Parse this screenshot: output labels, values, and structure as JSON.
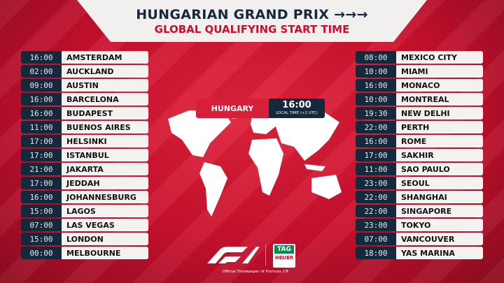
{
  "header": {
    "title": "HUNGARIAN GRAND PRIX →→→",
    "subtitle": "GLOBAL QUALIFYING START TIME"
  },
  "callout": {
    "country": "HUNGARY",
    "time": "16:00",
    "note": "LOCAL TIME (+2 UTC)"
  },
  "left": [
    {
      "time": "16:00",
      "city": "AMSTERDAM"
    },
    {
      "time": "02:00",
      "city": "AUCKLAND"
    },
    {
      "time": "09:00",
      "city": "AUSTIN"
    },
    {
      "time": "16:00",
      "city": "BARCELONA"
    },
    {
      "time": "16:00",
      "city": "BUDAPEST"
    },
    {
      "time": "11:00",
      "city": "BUENOS AIRES"
    },
    {
      "time": "17:00",
      "city": "HELSINKI"
    },
    {
      "time": "17:00",
      "city": "ISTANBUL"
    },
    {
      "time": "21:00",
      "city": "JAKARTA"
    },
    {
      "time": "17:00",
      "city": "JEDDAH"
    },
    {
      "time": "16:00",
      "city": "JOHANNESBURG"
    },
    {
      "time": "15:00",
      "city": "LAGOS"
    },
    {
      "time": "07:00",
      "city": "LAS VEGAS"
    },
    {
      "time": "15:00",
      "city": "LONDON"
    },
    {
      "time": "00:00",
      "city": "MELBOURNE"
    }
  ],
  "right": [
    {
      "time": "08:00",
      "city": "MEXICO CITY"
    },
    {
      "time": "10:00",
      "city": "MIAMI"
    },
    {
      "time": "16:00",
      "city": "MONACO"
    },
    {
      "time": "10:00",
      "city": "MONTREAL"
    },
    {
      "time": "19:30",
      "city": "NEW DELHI"
    },
    {
      "time": "22:00",
      "city": "PERTH"
    },
    {
      "time": "16:00",
      "city": "ROME"
    },
    {
      "time": "17:00",
      "city": "SAKHIR"
    },
    {
      "time": "11:00",
      "city": "SAO PAULO"
    },
    {
      "time": "23:00",
      "city": "SEOUL"
    },
    {
      "time": "22:00",
      "city": "SHANGHAI"
    },
    {
      "time": "22:00",
      "city": "SINGAPORE"
    },
    {
      "time": "23:00",
      "city": "TOKYO"
    },
    {
      "time": "07:00",
      "city": "VANCOUVER"
    },
    {
      "time": "18:00",
      "city": "YAS MARINA"
    }
  ],
  "footer": {
    "logo": "F1",
    "sponsor_top": "TAG",
    "sponsor_bottom": "HEUER",
    "tagline": "Official Timekeeper of Formula 1®"
  },
  "colors": {
    "red": "#c8102e",
    "navy": "#15293d",
    "light": "#f4f1f1"
  }
}
